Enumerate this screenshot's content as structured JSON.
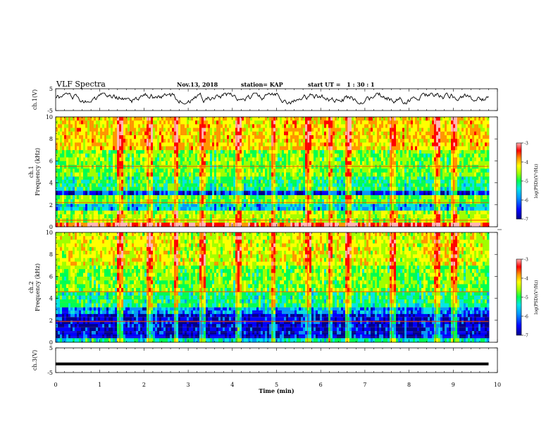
{
  "header": {
    "title": "VLF Spectra",
    "date": "Nov.13, 2018",
    "station": "station= KAP",
    "start_label": "start UT =",
    "start_time": "1 : 30 : 1"
  },
  "colors": {
    "spectrogram_palette": [
      "#00008b",
      "#0000ff",
      "#0096ff",
      "#00e6e6",
      "#00ff50",
      "#a0ff00",
      "#ffff00",
      "#ff9600",
      "#ff0000",
      "#ffb4b4"
    ],
    "trace": "#000000",
    "frame": "#000000"
  },
  "chart_data": [
    {
      "type": "line",
      "name": "ch1-waveform",
      "ylabel": "ch.1(V)",
      "ylim": [
        -5,
        5
      ],
      "yticks": [
        "5",
        "-5"
      ],
      "xlim": [
        0,
        10
      ],
      "x_extent": [
        0,
        9.8
      ],
      "envelope": "noisy trace, mostly between -2 and 3 V"
    },
    {
      "type": "heatmap",
      "name": "ch1-spectrogram",
      "ylabel": "Frequency (kHz)",
      "channel_label": "ch.1",
      "ylim": [
        0,
        10
      ],
      "yticks": [
        "0",
        "2",
        "4",
        "6",
        "8",
        "10"
      ],
      "xlim": [
        0,
        10
      ],
      "x_extent": [
        0,
        9.8
      ],
      "colorbar": {
        "label": "log(PSD)(V²/Hz)",
        "range": [
          -7,
          -3
        ],
        "ticks": [
          "-3",
          "-4",
          "-5",
          "-6",
          "-7"
        ]
      },
      "bands": [
        {
          "from": 0,
          "to": 0.4,
          "level": -3.6
        },
        {
          "from": 0.4,
          "to": 1.5,
          "level": -4.7
        },
        {
          "from": 1.5,
          "to": 2.1,
          "level": -5.8
        },
        {
          "from": 2.1,
          "to": 2.9,
          "level": -5.0
        },
        {
          "from": 2.9,
          "to": 3.3,
          "level": -6.4
        },
        {
          "from": 3.3,
          "to": 4.6,
          "level": -5.3
        },
        {
          "from": 4.6,
          "to": 7.0,
          "level": -4.9
        },
        {
          "from": 7.0,
          "to": 10,
          "level": -4.3
        }
      ],
      "strong_lines_khz": [
        0.6,
        2.2,
        5.5
      ],
      "bright_times_min": [
        1.45,
        2.1,
        2.7,
        3.3,
        4.1,
        4.9,
        5.7,
        6.2,
        6.6,
        7.6,
        8.6,
        9.0
      ]
    },
    {
      "type": "heatmap",
      "name": "ch2-spectrogram",
      "ylabel": "Frequency (kHz)",
      "channel_label": "ch.2",
      "ylim": [
        0,
        10
      ],
      "yticks": [
        "0",
        "2",
        "4",
        "6",
        "8",
        "10"
      ],
      "xlim": [
        0,
        10
      ],
      "x_extent": [
        0,
        9.8
      ],
      "colorbar": {
        "label": "log(PSD)(V²/Hz)",
        "range": [
          -7,
          -3
        ],
        "ticks": [
          "-3",
          "-4",
          "-5",
          "-6",
          "-7"
        ]
      },
      "bands": [
        {
          "from": 0,
          "to": 0.4,
          "level": -5.5
        },
        {
          "from": 0.4,
          "to": 2.6,
          "level": -6.5
        },
        {
          "from": 2.6,
          "to": 3.2,
          "level": -6.0
        },
        {
          "from": 3.2,
          "to": 4.6,
          "level": -5.3
        },
        {
          "from": 4.6,
          "to": 7.0,
          "level": -4.9
        },
        {
          "from": 7.0,
          "to": 10,
          "level": -4.5
        }
      ],
      "strong_lines_khz": [
        1.9,
        4.6
      ],
      "bright_times_min": [
        1.45,
        2.1,
        2.7,
        3.3,
        4.1,
        4.9,
        5.7,
        6.2,
        6.6,
        7.6,
        8.6,
        9.0
      ]
    },
    {
      "type": "line",
      "name": "ch3-waveform",
      "ylabel": "ch.3(V)",
      "ylim": [
        -5,
        5
      ],
      "yticks": [
        "5",
        "-5"
      ],
      "xlim": [
        0,
        10
      ],
      "x_extent": [
        0,
        9.8
      ],
      "constant_value": -1.5,
      "xlabel": "Time (min)",
      "xticks": [
        "0",
        "1",
        "2",
        "3",
        "4",
        "5",
        "6",
        "7",
        "8",
        "9",
        "10"
      ]
    }
  ]
}
